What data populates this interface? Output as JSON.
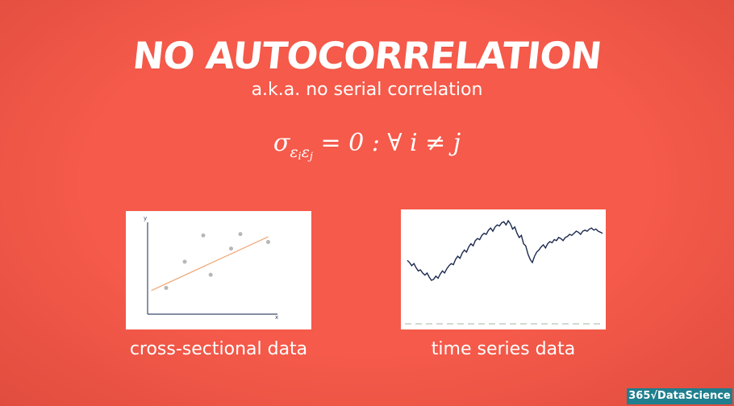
{
  "slide": {
    "title": "NO AUTOCORRELATION",
    "subtitle": "a.k.a. no serial correlation",
    "formula": {
      "sigma": "σ",
      "eps_i": "ε",
      "i": "i",
      "eps_j": "ε",
      "j": "j",
      "rest": " = 0 : ∀ i ≠ j"
    },
    "background_color": "#f55a4a"
  },
  "left_figure": {
    "caption": "cross-sectional data",
    "y_axis_label": "y",
    "x_axis_label": "x",
    "points": [
      [
        1,
        2
      ],
      [
        2,
        4
      ],
      [
        3,
        6
      ],
      [
        3.4,
        3
      ],
      [
        4.5,
        5
      ],
      [
        5,
        6.1
      ],
      [
        6.5,
        5.5
      ]
    ],
    "trend_line": [
      [
        0.2,
        1.8
      ],
      [
        6.5,
        5.9
      ]
    ],
    "point_color": "#b7b7b7",
    "line_color": "#f0a878"
  },
  "right_figure": {
    "caption": "time series data",
    "line_color": "#1d2a4e",
    "dash_color": "#b7c2b7",
    "series": [
      54,
      52,
      49,
      51,
      47,
      44,
      45,
      42,
      40,
      42,
      38,
      35,
      36,
      39,
      37,
      41,
      44,
      42,
      46,
      49,
      51,
      50,
      55,
      58,
      56,
      61,
      64,
      62,
      67,
      70,
      68,
      73,
      75,
      74,
      78,
      80,
      79,
      83,
      85,
      82,
      86,
      88,
      87,
      90,
      91,
      88,
      92,
      89,
      84,
      86,
      80,
      76,
      78,
      70,
      68,
      60,
      55,
      52,
      58,
      62,
      64,
      67,
      69,
      66,
      70,
      72,
      71,
      74,
      73,
      76,
      75,
      73,
      76,
      77,
      79,
      78,
      80,
      82,
      81,
      79,
      82,
      83,
      82,
      84,
      85,
      83,
      84,
      82,
      81,
      80
    ]
  },
  "branding": {
    "label": "365√DataScience"
  }
}
